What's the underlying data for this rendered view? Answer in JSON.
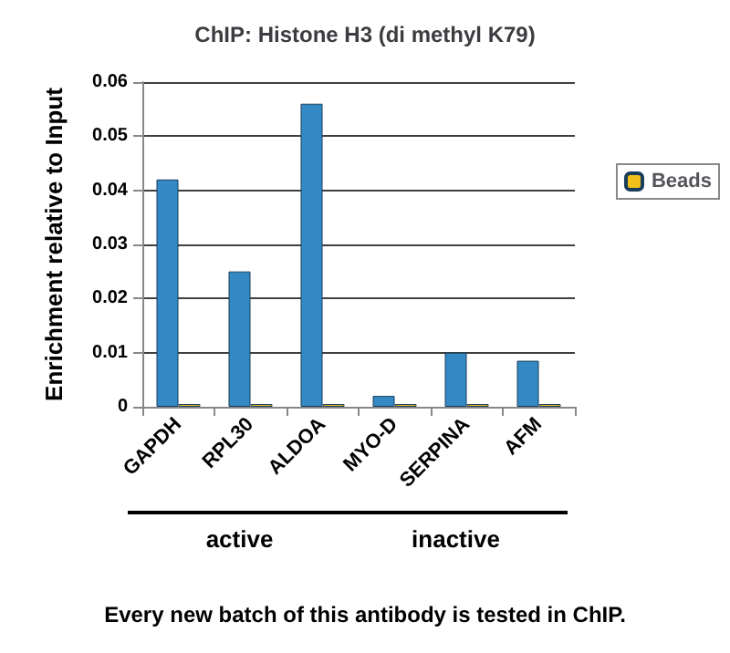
{
  "chart_data": {
    "type": "bar",
    "title": "ChIP: Histone H3 (di methyl K79)",
    "ylabel": "Enrichment relative to Input",
    "categories": [
      "GAPDH",
      "RPL30",
      "ALDOA",
      "MYO-D",
      "SERPINA",
      "AFM"
    ],
    "series": [
      {
        "color": "#3389c3",
        "values": [
          0.042,
          0.025,
          0.056,
          0.002,
          0.01,
          0.0085
        ]
      },
      {
        "name": "Beads",
        "color": "#f2c21a",
        "values": [
          0.0005,
          0.0005,
          0.0005,
          0.0005,
          0.0005,
          0.0005
        ]
      }
    ],
    "ylim": [
      0,
      0.06
    ],
    "yticks": [
      0,
      0.01,
      0.02,
      0.03,
      0.04,
      0.05,
      0.06
    ],
    "grid": "y",
    "legend": "right",
    "annotations": [
      "active",
      "inactive",
      "Every new batch of this antibody is tested in ChIP."
    ]
  }
}
